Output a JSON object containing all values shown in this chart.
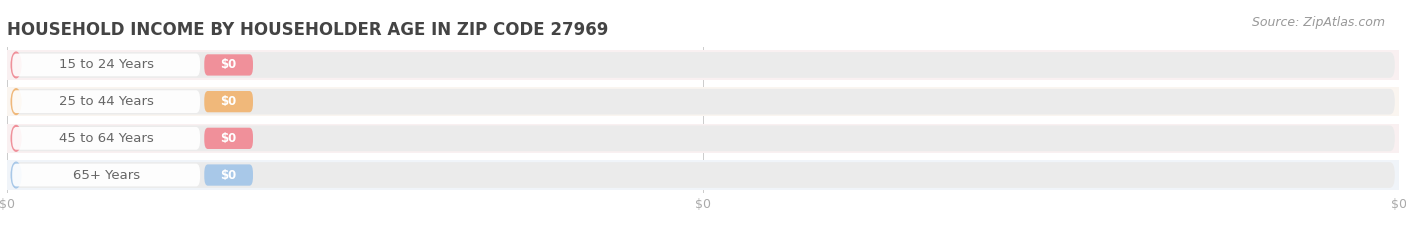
{
  "title": "HOUSEHOLD INCOME BY HOUSEHOLDER AGE IN ZIP CODE 27969",
  "source": "Source: ZipAtlas.com",
  "categories": [
    "15 to 24 Years",
    "25 to 44 Years",
    "45 to 64 Years",
    "65+ Years"
  ],
  "values": [
    0,
    0,
    0,
    0
  ],
  "bar_colors": [
    "#f0909a",
    "#f0b87a",
    "#f0909a",
    "#a8c8e8"
  ],
  "bar_bg_color": "#ebebeb",
  "row_bg_colors": [
    "#f9f0f1",
    "#faf5f0",
    "#f9f0f1",
    "#f0f4f9"
  ],
  "background_color": "#ffffff",
  "title_color": "#444444",
  "label_color": "#666666",
  "tick_color": "#aaaaaa",
  "source_color": "#999999",
  "title_fontsize": 12,
  "label_fontsize": 9.5,
  "value_fontsize": 8.5,
  "tick_fontsize": 9,
  "source_fontsize": 9
}
